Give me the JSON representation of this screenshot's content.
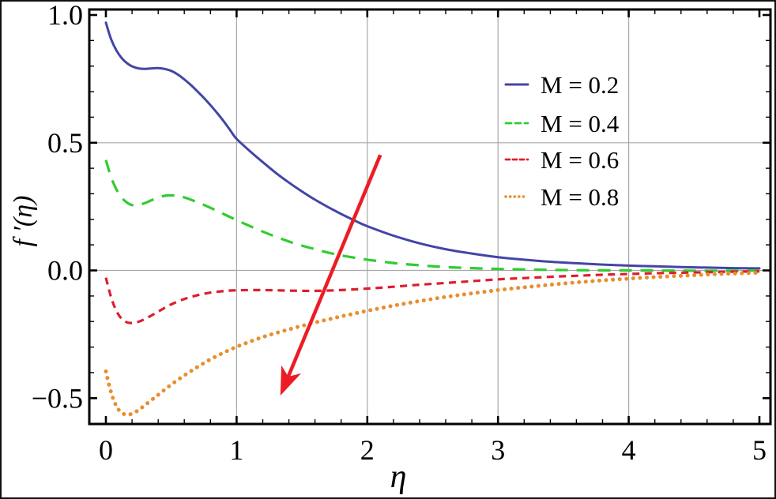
{
  "figure": {
    "background": "#ffffff",
    "border_color": "#111111",
    "frame_color": "#000000",
    "gridline_color": "#a8a8a8",
    "text_color": "#000000"
  },
  "chart_data": {
    "type": "line",
    "title": "",
    "xlabel": "η",
    "ylabel": "f ′(η)",
    "xlim": [
      -0.13,
      5.09
    ],
    "ylim": [
      -0.6,
      1.02
    ],
    "x_ticks": [
      0,
      1,
      2,
      3,
      4,
      5
    ],
    "x_tick_labels": [
      "0",
      "1",
      "2",
      "3",
      "4",
      "5"
    ],
    "y_ticks": [
      1.0,
      0.5,
      0.0,
      -0.5
    ],
    "y_tick_labels": [
      "1.0",
      "0.5",
      "0.0",
      "−0.5"
    ],
    "x_minor_step": 0.2,
    "y_minor_step": 0.1,
    "grid_x": [
      1,
      2,
      3,
      4
    ],
    "grid_y": [
      0.5,
      0.0
    ],
    "legend_position": "upper-right-inside",
    "legend": {
      "entries": [
        "M = 0.2",
        "M = 0.4",
        "M = 0.6",
        "M = 0.8"
      ]
    },
    "series": [
      {
        "name": "M = 0.2",
        "color": "#4345a5",
        "style": "solid",
        "points": [
          [
            0,
            0.97
          ],
          [
            0.04,
            0.905
          ],
          [
            0.08,
            0.862
          ],
          [
            0.12,
            0.832
          ],
          [
            0.16,
            0.812
          ],
          [
            0.2,
            0.799
          ],
          [
            0.25,
            0.791
          ],
          [
            0.3,
            0.789
          ],
          [
            0.35,
            0.791
          ],
          [
            0.4,
            0.792
          ],
          [
            0.45,
            0.789
          ],
          [
            0.5,
            0.781
          ],
          [
            0.55,
            0.767
          ],
          [
            0.6,
            0.748
          ],
          [
            0.65,
            0.726
          ],
          [
            0.7,
            0.701
          ],
          [
            0.75,
            0.675
          ],
          [
            0.8,
            0.647
          ],
          [
            0.85,
            0.617
          ],
          [
            0.9,
            0.585
          ],
          [
            0.95,
            0.55
          ],
          [
            1.0,
            0.515
          ],
          [
            1.1,
            0.468
          ],
          [
            1.2,
            0.424
          ],
          [
            1.3,
            0.382
          ],
          [
            1.4,
            0.344
          ],
          [
            1.5,
            0.309
          ],
          [
            1.6,
            0.277
          ],
          [
            1.7,
            0.248
          ],
          [
            1.8,
            0.221
          ],
          [
            1.9,
            0.196
          ],
          [
            2.0,
            0.173
          ],
          [
            2.2,
            0.136
          ],
          [
            2.4,
            0.106
          ],
          [
            2.6,
            0.083
          ],
          [
            2.8,
            0.066
          ],
          [
            3.0,
            0.052
          ],
          [
            3.2,
            0.042
          ],
          [
            3.4,
            0.034
          ],
          [
            3.6,
            0.028
          ],
          [
            3.8,
            0.023
          ],
          [
            4.0,
            0.019
          ],
          [
            4.2,
            0.016
          ],
          [
            4.4,
            0.013
          ],
          [
            4.6,
            0.011
          ],
          [
            4.8,
            0.009
          ],
          [
            5.0,
            0.008
          ]
        ]
      },
      {
        "name": "M = 0.4",
        "color": "#30cc30",
        "style": "long-dash",
        "points": [
          [
            0,
            0.432
          ],
          [
            0.04,
            0.365
          ],
          [
            0.08,
            0.318
          ],
          [
            0.12,
            0.286
          ],
          [
            0.16,
            0.266
          ],
          [
            0.2,
            0.256
          ],
          [
            0.25,
            0.256
          ],
          [
            0.3,
            0.264
          ],
          [
            0.35,
            0.275
          ],
          [
            0.4,
            0.285
          ],
          [
            0.45,
            0.292
          ],
          [
            0.5,
            0.294
          ],
          [
            0.55,
            0.292
          ],
          [
            0.6,
            0.286
          ],
          [
            0.7,
            0.267
          ],
          [
            0.8,
            0.245
          ],
          [
            0.9,
            0.221
          ],
          [
            1.0,
            0.197
          ],
          [
            1.1,
            0.174
          ],
          [
            1.2,
            0.152
          ],
          [
            1.3,
            0.132
          ],
          [
            1.4,
            0.113
          ],
          [
            1.5,
            0.097
          ],
          [
            1.6,
            0.083
          ],
          [
            1.7,
            0.07
          ],
          [
            1.8,
            0.059
          ],
          [
            1.9,
            0.05
          ],
          [
            2.0,
            0.042
          ],
          [
            2.2,
            0.029
          ],
          [
            2.4,
            0.02
          ],
          [
            2.6,
            0.013
          ],
          [
            2.8,
            0.009
          ],
          [
            3.0,
            0.006
          ],
          [
            3.3,
            0.003
          ],
          [
            3.6,
            0.001
          ],
          [
            4.0,
            0.0
          ],
          [
            4.5,
            -0.001
          ],
          [
            5.0,
            -0.001
          ]
        ]
      },
      {
        "name": "M = 0.6",
        "color": "#dc1f2e",
        "style": "dash",
        "points": [
          [
            0,
            -0.028
          ],
          [
            0.04,
            -0.105
          ],
          [
            0.08,
            -0.158
          ],
          [
            0.12,
            -0.189
          ],
          [
            0.16,
            -0.203
          ],
          [
            0.2,
            -0.206
          ],
          [
            0.25,
            -0.201
          ],
          [
            0.3,
            -0.19
          ],
          [
            0.35,
            -0.176
          ],
          [
            0.4,
            -0.161
          ],
          [
            0.5,
            -0.133
          ],
          [
            0.6,
            -0.112
          ],
          [
            0.7,
            -0.097
          ],
          [
            0.8,
            -0.087
          ],
          [
            0.9,
            -0.081
          ],
          [
            1.0,
            -0.078
          ],
          [
            1.2,
            -0.077
          ],
          [
            1.4,
            -0.079
          ],
          [
            1.6,
            -0.08
          ],
          [
            1.8,
            -0.077
          ],
          [
            2.0,
            -0.071
          ],
          [
            2.2,
            -0.064
          ],
          [
            2.4,
            -0.056
          ],
          [
            2.6,
            -0.049
          ],
          [
            2.8,
            -0.042
          ],
          [
            3.0,
            -0.035
          ],
          [
            3.2,
            -0.03
          ],
          [
            3.4,
            -0.025
          ],
          [
            3.6,
            -0.021
          ],
          [
            3.8,
            -0.017
          ],
          [
            4.0,
            -0.014
          ],
          [
            4.2,
            -0.011
          ],
          [
            4.4,
            -0.009
          ],
          [
            4.6,
            -0.007
          ],
          [
            4.8,
            -0.005
          ],
          [
            5.0,
            -0.004
          ]
        ]
      },
      {
        "name": "M = 0.8",
        "color": "#e78f2e",
        "style": "dot",
        "points": [
          [
            0,
            -0.395
          ],
          [
            0.03,
            -0.46
          ],
          [
            0.06,
            -0.508
          ],
          [
            0.09,
            -0.54
          ],
          [
            0.12,
            -0.557
          ],
          [
            0.15,
            -0.564
          ],
          [
            0.18,
            -0.564
          ],
          [
            0.22,
            -0.556
          ],
          [
            0.26,
            -0.543
          ],
          [
            0.3,
            -0.527
          ],
          [
            0.4,
            -0.487
          ],
          [
            0.5,
            -0.447
          ],
          [
            0.6,
            -0.411
          ],
          [
            0.7,
            -0.378
          ],
          [
            0.8,
            -0.348
          ],
          [
            0.9,
            -0.322
          ],
          [
            1.0,
            -0.299
          ],
          [
            1.1,
            -0.279
          ],
          [
            1.2,
            -0.261
          ],
          [
            1.3,
            -0.245
          ],
          [
            1.4,
            -0.231
          ],
          [
            1.5,
            -0.217
          ],
          [
            1.6,
            -0.204
          ],
          [
            1.7,
            -0.192
          ],
          [
            1.8,
            -0.18
          ],
          [
            1.9,
            -0.169
          ],
          [
            2.0,
            -0.158
          ],
          [
            2.2,
            -0.138
          ],
          [
            2.4,
            -0.12
          ],
          [
            2.6,
            -0.104
          ],
          [
            2.8,
            -0.09
          ],
          [
            3.0,
            -0.077
          ],
          [
            3.2,
            -0.066
          ],
          [
            3.4,
            -0.056
          ],
          [
            3.6,
            -0.047
          ],
          [
            3.8,
            -0.039
          ],
          [
            4.0,
            -0.032
          ],
          [
            4.2,
            -0.026
          ],
          [
            4.4,
            -0.021
          ],
          [
            4.6,
            -0.016
          ],
          [
            4.8,
            -0.012
          ],
          [
            5.0,
            -0.009
          ]
        ]
      }
    ],
    "annotation_arrow": {
      "color": "#ed1c24",
      "from": [
        2.1,
        0.452
      ],
      "to": [
        1.335,
        -0.49
      ]
    }
  }
}
